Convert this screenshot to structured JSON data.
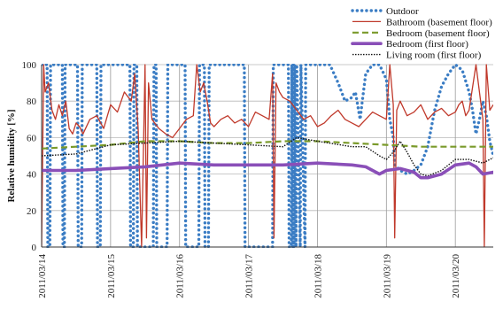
{
  "chart_data": {
    "type": "line",
    "title": "",
    "xlabel": "",
    "ylabel": "Relative humidity [%]",
    "ylim": [
      0,
      100
    ],
    "yticks": [
      0,
      20,
      40,
      60,
      80,
      100
    ],
    "xlim": [
      0,
      6.55
    ],
    "xticks": [
      {
        "x": 0,
        "label": "2011/03/14"
      },
      {
        "x": 1,
        "label": "2011/03/15"
      },
      {
        "x": 2,
        "label": "2011/03/16"
      },
      {
        "x": 3,
        "label": "2011/03/17"
      },
      {
        "x": 4,
        "label": "2011/03/18"
      },
      {
        "x": 5,
        "label": "2011/03/19"
      },
      {
        "x": 6,
        "label": "2011/03/20"
      }
    ],
    "grid": true,
    "legend_position": "top-right",
    "series": [
      {
        "name": "Outdoor",
        "color": "#3b7dc4",
        "style": "dotted",
        "x": [
          0,
          0.08,
          0.09,
          0.12,
          0.13,
          0.3,
          0.31,
          0.33,
          0.34,
          0.52,
          0.53,
          0.58,
          0.59,
          0.8,
          0.81,
          0.85,
          0.86,
          1.28,
          1.29,
          1.33,
          1.34,
          1.38,
          1.39,
          1.62,
          1.63,
          1.66,
          1.67,
          1.82,
          1.83,
          2.08,
          2.09,
          2.28,
          2.29,
          2.36,
          2.37,
          2.42,
          2.43,
          2.94,
          2.95,
          3.35,
          3.36,
          3.58,
          3.59,
          3.62,
          3.63,
          3.64,
          3.65,
          3.66,
          3.67,
          3.69,
          3.7,
          3.75,
          3.76,
          3.82,
          3.83,
          4.18,
          4.3,
          4.4,
          4.5,
          4.55,
          4.62,
          4.65,
          4.7,
          4.8,
          4.9,
          5.0,
          5.05,
          5.1,
          5.12,
          5.2,
          5.3,
          5.4,
          5.5,
          5.6,
          5.7,
          5.8,
          5.9,
          6.0,
          6.1,
          6.2,
          6.25,
          6.3,
          6.35,
          6.4,
          6.45,
          6.5,
          6.55
        ],
        "y": [
          100,
          100,
          0,
          0,
          100,
          100,
          0,
          0,
          100,
          100,
          0,
          0,
          100,
          100,
          0,
          0,
          100,
          100,
          0,
          0,
          100,
          100,
          0,
          0,
          100,
          100,
          0,
          0,
          100,
          100,
          0,
          0,
          100,
          100,
          0,
          0,
          100,
          100,
          0,
          0,
          100,
          100,
          0,
          0,
          100,
          0,
          100,
          0,
          100,
          0,
          100,
          0,
          100,
          0,
          100,
          100,
          90,
          80,
          82,
          85,
          70,
          80,
          95,
          100,
          100,
          92,
          70,
          60,
          45,
          42,
          40,
          42,
          45,
          55,
          75,
          88,
          95,
          100,
          97,
          85,
          75,
          62,
          70,
          80,
          72,
          58,
          50
        ]
      },
      {
        "name": "Bathroom (basement floor)",
        "color": "#c0392b",
        "style": "solid",
        "x": [
          0,
          0.03,
          0.05,
          0.1,
          0.15,
          0.2,
          0.25,
          0.3,
          0.35,
          0.4,
          0.45,
          0.5,
          0.55,
          0.6,
          0.7,
          0.8,
          0.9,
          1.0,
          1.1,
          1.2,
          1.3,
          1.35,
          1.4,
          1.45,
          1.5,
          1.52,
          1.55,
          1.6,
          1.7,
          1.8,
          1.9,
          2.0,
          2.1,
          2.2,
          2.25,
          2.3,
          2.35,
          2.4,
          2.45,
          2.5,
          2.6,
          2.7,
          2.8,
          2.9,
          3.0,
          3.1,
          3.2,
          3.3,
          3.35,
          3.37,
          3.4,
          3.45,
          3.5,
          3.6,
          3.7,
          3.8,
          3.9,
          4.0,
          4.1,
          4.2,
          4.3,
          4.4,
          4.5,
          4.6,
          4.7,
          4.8,
          4.9,
          5.0,
          5.05,
          5.1,
          5.12,
          5.15,
          5.2,
          5.3,
          5.4,
          5.5,
          5.6,
          5.7,
          5.8,
          5.9,
          6.0,
          6.05,
          6.1,
          6.15,
          6.2,
          6.3,
          6.4,
          6.42,
          6.45,
          6.5,
          6.55
        ],
        "y": [
          0,
          100,
          85,
          90,
          75,
          70,
          78,
          72,
          80,
          65,
          62,
          68,
          66,
          62,
          70,
          72,
          65,
          78,
          74,
          85,
          80,
          95,
          65,
          0,
          100,
          5,
          90,
          70,
          65,
          62,
          60,
          65,
          70,
          72,
          100,
          85,
          90,
          80,
          68,
          66,
          70,
          72,
          68,
          70,
          66,
          74,
          72,
          70,
          95,
          5,
          90,
          85,
          82,
          80,
          75,
          70,
          72,
          66,
          68,
          72,
          75,
          70,
          68,
          66,
          70,
          74,
          72,
          70,
          100,
          78,
          5,
          75,
          80,
          72,
          74,
          78,
          70,
          74,
          76,
          72,
          74,
          78,
          80,
          72,
          75,
          100,
          70,
          0,
          100,
          75,
          78
        ]
      },
      {
        "name": "Bedroom (basement floor)",
        "color": "#7a9a2a",
        "style": "dashed",
        "x": [
          0,
          0.5,
          1.0,
          1.5,
          2.0,
          2.5,
          3.0,
          3.5,
          4.0,
          4.5,
          5.0,
          5.5,
          6.0,
          6.5,
          6.55
        ],
        "y": [
          54,
          55,
          56,
          58,
          58,
          57,
          57,
          58,
          58,
          57,
          56,
          55,
          55,
          55,
          55
        ]
      },
      {
        "name": "Bedroom (first floor)",
        "color": "#8a4fb8",
        "style": "solid-thick",
        "x": [
          0,
          0.5,
          1.0,
          1.5,
          2.0,
          2.5,
          3.0,
          3.5,
          4.0,
          4.5,
          4.7,
          4.9,
          5.0,
          5.2,
          5.4,
          5.5,
          5.6,
          5.8,
          6.0,
          6.2,
          6.3,
          6.4,
          6.55
        ],
        "y": [
          42,
          42,
          43,
          44,
          46,
          45,
          45,
          45,
          46,
          45,
          44,
          40,
          42,
          43,
          41,
          38,
          38,
          40,
          45,
          46,
          44,
          40,
          41
        ]
      },
      {
        "name": "Living room (first floor)",
        "color": "#111111",
        "style": "dotted-fine",
        "x": [
          0,
          0.5,
          0.8,
          1.0,
          1.5,
          2.0,
          2.5,
          3.0,
          3.5,
          3.7,
          4.0,
          4.5,
          4.7,
          4.9,
          5.0,
          5.1,
          5.2,
          5.3,
          5.4,
          5.5,
          5.6,
          5.8,
          6.0,
          6.2,
          6.4,
          6.5,
          6.55
        ],
        "y": [
          50,
          51,
          54,
          56,
          57,
          58,
          57,
          56,
          55,
          60,
          58,
          55,
          55,
          50,
          48,
          52,
          58,
          52,
          45,
          40,
          39,
          42,
          48,
          48,
          46,
          48,
          49
        ]
      }
    ]
  }
}
